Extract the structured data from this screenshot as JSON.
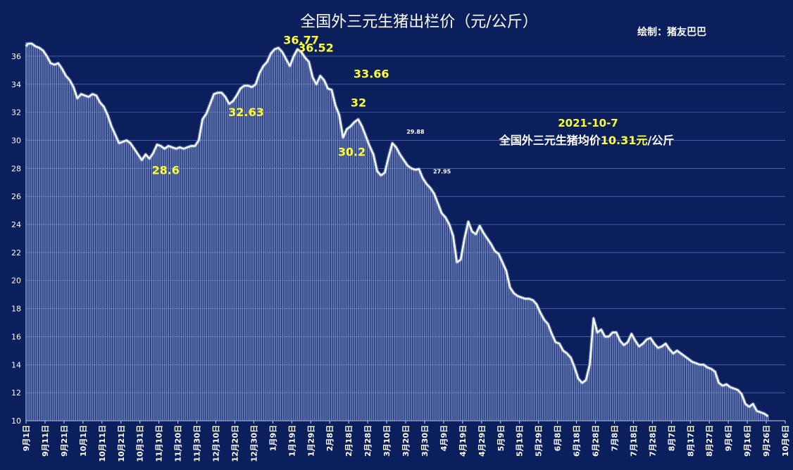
{
  "chart_data": {
    "type": "bar",
    "title": "全国外三元生猪出栏价（元/公斤）",
    "credit": "绘制：猪友巴巴",
    "note": {
      "date": "2021-10-7",
      "prefix": "全国外三元生猪均价",
      "value": "10.31元",
      "suffix": "/公斤"
    },
    "ylim": [
      10,
      37
    ],
    "yticks": [
      10,
      12,
      14,
      16,
      18,
      20,
      22,
      24,
      26,
      28,
      30,
      32,
      34,
      36
    ],
    "grid": true,
    "legend": "none",
    "categories": [
      "9月1日",
      "9月11日",
      "9月21日",
      "10月1日",
      "10月11日",
      "10月21日",
      "10月31日",
      "11月10日",
      "11月20日",
      "11月30日",
      "12月10日",
      "12月20日",
      "12月30日",
      "1月9日",
      "1月19日",
      "1月29日",
      "2月8日",
      "2月18日",
      "2月28日",
      "3月10日",
      "3月20日",
      "3月30日",
      "4月9日",
      "4月19日",
      "4月29日",
      "5月9日",
      "5月19日",
      "5月29日",
      "6月8日",
      "6月18日",
      "6月28日",
      "7月8日",
      "7月18日",
      "7月28日",
      "8月7日",
      "8月17日",
      "8月27日",
      "9月6日",
      "9月16日",
      "9月26日",
      "10月6日"
    ],
    "series": [
      {
        "points": [
          [
            0,
            36.7
          ],
          [
            1,
            36.9
          ],
          [
            3,
            36.9
          ],
          [
            5,
            36.7
          ],
          [
            7,
            36.6
          ],
          [
            9,
            36.4
          ],
          [
            11,
            36.0
          ],
          [
            13,
            35.5
          ],
          [
            15,
            35.4
          ],
          [
            17,
            35.5
          ],
          [
            19,
            35.1
          ],
          [
            21,
            34.6
          ],
          [
            23,
            34.3
          ],
          [
            25,
            33.8
          ],
          [
            27,
            33.0
          ],
          [
            29,
            33.3
          ],
          [
            31,
            33.2
          ],
          [
            33,
            33.1
          ],
          [
            35,
            33.3
          ],
          [
            37,
            33.2
          ],
          [
            39,
            32.7
          ],
          [
            41,
            32.4
          ],
          [
            43,
            31.8
          ],
          [
            45,
            31.0
          ],
          [
            47,
            30.4
          ],
          [
            49,
            29.8
          ],
          [
            51,
            29.9
          ],
          [
            53,
            30.0
          ],
          [
            55,
            29.8
          ],
          [
            57,
            29.4
          ],
          [
            59,
            29.0
          ],
          [
            61,
            28.6
          ],
          [
            63,
            29.0
          ],
          [
            65,
            28.7
          ],
          [
            67,
            29.1
          ],
          [
            69,
            29.7
          ],
          [
            71,
            29.6
          ],
          [
            73,
            29.4
          ],
          [
            75,
            29.6
          ],
          [
            77,
            29.5
          ],
          [
            79,
            29.4
          ],
          [
            81,
            29.5
          ],
          [
            83,
            29.4
          ],
          [
            85,
            29.5
          ],
          [
            87,
            29.6
          ],
          [
            89,
            29.6
          ],
          [
            91,
            30.0
          ],
          [
            93,
            31.5
          ],
          [
            95,
            31.9
          ],
          [
            97,
            32.6
          ],
          [
            99,
            33.3
          ],
          [
            101,
            33.4
          ],
          [
            103,
            33.4
          ],
          [
            105,
            33.1
          ],
          [
            107,
            32.6
          ],
          [
            109,
            32.8
          ],
          [
            111,
            33.2
          ],
          [
            113,
            33.7
          ],
          [
            115,
            33.9
          ],
          [
            117,
            33.9
          ],
          [
            119,
            33.8
          ],
          [
            121,
            34.0
          ],
          [
            123,
            34.8
          ],
          [
            125,
            35.3
          ],
          [
            127,
            35.6
          ],
          [
            129,
            36.2
          ],
          [
            131,
            36.5
          ],
          [
            133,
            36.6
          ],
          [
            135,
            36.3
          ],
          [
            137,
            35.8
          ],
          [
            139,
            35.3
          ],
          [
            141,
            36.0
          ],
          [
            143,
            36.5
          ],
          [
            145,
            36.3
          ],
          [
            147,
            35.9
          ],
          [
            149,
            35.6
          ],
          [
            151,
            34.5
          ],
          [
            153,
            34.0
          ],
          [
            155,
            34.6
          ],
          [
            157,
            34.3
          ],
          [
            159,
            33.7
          ],
          [
            161,
            33.6
          ],
          [
            163,
            32.5
          ],
          [
            165,
            31.8
          ],
          [
            167,
            30.2
          ],
          [
            169,
            30.8
          ],
          [
            171,
            31.0
          ],
          [
            173,
            31.3
          ],
          [
            175,
            31.5
          ],
          [
            177,
            31.0
          ],
          [
            179,
            30.3
          ],
          [
            181,
            29.6
          ],
          [
            183,
            29.0
          ],
          [
            185,
            27.8
          ],
          [
            187,
            27.5
          ],
          [
            189,
            27.7
          ],
          [
            191,
            28.8
          ],
          [
            193,
            29.8
          ],
          [
            195,
            29.5
          ],
          [
            197,
            29.0
          ],
          [
            199,
            28.6
          ],
          [
            201,
            28.2
          ],
          [
            203,
            28.0
          ],
          [
            205,
            27.9
          ],
          [
            207,
            27.95
          ],
          [
            209,
            27.3
          ],
          [
            211,
            26.9
          ],
          [
            213,
            26.6
          ],
          [
            215,
            26.2
          ],
          [
            217,
            25.5
          ],
          [
            219,
            24.8
          ],
          [
            221,
            24.5
          ],
          [
            223,
            24.0
          ],
          [
            225,
            23.2
          ],
          [
            227,
            21.3
          ],
          [
            229,
            21.5
          ],
          [
            231,
            23.0
          ],
          [
            233,
            24.2
          ],
          [
            235,
            23.5
          ],
          [
            237,
            23.3
          ],
          [
            239,
            23.9
          ],
          [
            241,
            23.4
          ],
          [
            243,
            23.0
          ],
          [
            245,
            22.6
          ],
          [
            247,
            22.1
          ],
          [
            249,
            21.9
          ],
          [
            251,
            21.3
          ],
          [
            253,
            20.7
          ],
          [
            255,
            19.5
          ],
          [
            257,
            19.1
          ],
          [
            259,
            18.9
          ],
          [
            261,
            18.8
          ],
          [
            263,
            18.7
          ],
          [
            265,
            18.7
          ],
          [
            267,
            18.6
          ],
          [
            269,
            18.3
          ],
          [
            271,
            17.7
          ],
          [
            273,
            17.2
          ],
          [
            275,
            16.9
          ],
          [
            277,
            16.2
          ],
          [
            279,
            15.6
          ],
          [
            281,
            15.5
          ],
          [
            283,
            15.0
          ],
          [
            285,
            14.8
          ],
          [
            287,
            14.5
          ],
          [
            289,
            13.8
          ],
          [
            291,
            13.0
          ],
          [
            293,
            12.7
          ],
          [
            295,
            12.9
          ],
          [
            297,
            14.0
          ],
          [
            299,
            17.3
          ],
          [
            301,
            16.3
          ],
          [
            303,
            16.5
          ],
          [
            305,
            16.0
          ],
          [
            307,
            16.0
          ],
          [
            309,
            16.3
          ],
          [
            311,
            16.3
          ],
          [
            313,
            15.7
          ],
          [
            315,
            15.4
          ],
          [
            317,
            15.6
          ],
          [
            319,
            16.2
          ],
          [
            321,
            15.7
          ],
          [
            323,
            15.3
          ],
          [
            325,
            15.5
          ],
          [
            327,
            15.8
          ],
          [
            329,
            15.9
          ],
          [
            331,
            15.5
          ],
          [
            333,
            15.2
          ],
          [
            335,
            15.3
          ],
          [
            337,
            15.5
          ],
          [
            339,
            15.1
          ],
          [
            341,
            14.8
          ],
          [
            343,
            15.0
          ],
          [
            345,
            14.8
          ],
          [
            347,
            14.6
          ],
          [
            349,
            14.4
          ],
          [
            351,
            14.2
          ],
          [
            353,
            14.1
          ],
          [
            355,
            14.0
          ],
          [
            357,
            14.0
          ],
          [
            359,
            13.8
          ],
          [
            361,
            13.7
          ],
          [
            363,
            13.5
          ],
          [
            365,
            12.7
          ],
          [
            367,
            12.5
          ],
          [
            369,
            12.6
          ],
          [
            371,
            12.4
          ],
          [
            373,
            12.3
          ],
          [
            375,
            12.2
          ],
          [
            377,
            11.9
          ],
          [
            379,
            11.2
          ],
          [
            381,
            11.0
          ],
          [
            383,
            11.2
          ],
          [
            385,
            10.7
          ],
          [
            387,
            10.6
          ],
          [
            389,
            10.5
          ],
          [
            391,
            10.31
          ]
        ]
      }
    ],
    "annotations": [
      {
        "text": "36.77",
        "x": 140,
        "y": 36.77,
        "style": "yellow"
      },
      {
        "text": "36.52",
        "x": 147,
        "y": 36.52,
        "style": "yellow"
      },
      {
        "text": "32.63",
        "x": 111,
        "y": 32.63,
        "style": "yellow"
      },
      {
        "text": "33.66",
        "x": 174,
        "y": 33.66,
        "style": "yellow"
      },
      {
        "text": "32",
        "x": 174,
        "y": 32.0,
        "style": "yellow"
      },
      {
        "text": "30.2",
        "x": 168,
        "y": 30.2,
        "style": "yellow"
      },
      {
        "text": "28.6",
        "x": 64,
        "y": 28.6,
        "style": "yellow"
      },
      {
        "text": "29.88",
        "x": 196,
        "y": 29.88,
        "style": "white"
      },
      {
        "text": "27.95",
        "x": 210,
        "y": 27.95,
        "style": "white"
      }
    ]
  }
}
